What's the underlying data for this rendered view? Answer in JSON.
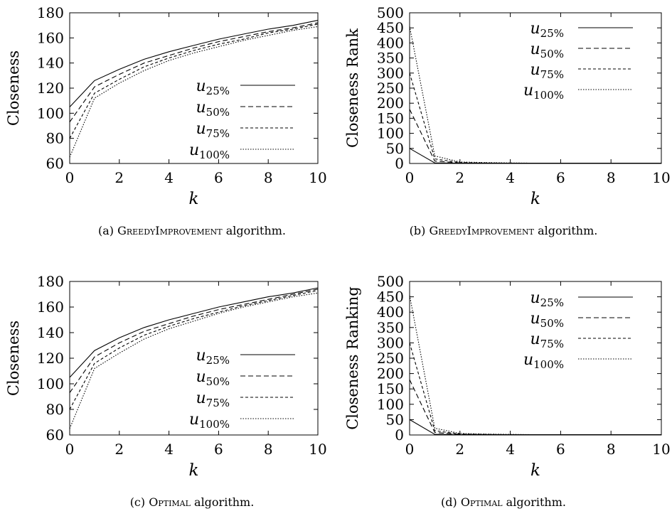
{
  "chart_data": [
    {
      "type": "line",
      "caption_prefix": "(a)",
      "caption_algo": "GreedyImprovement",
      "caption_suffix": "algorithm.",
      "ylabel": "Closeness",
      "xlabel": "k",
      "xlim": [
        0,
        10
      ],
      "ylim": [
        60,
        180
      ],
      "xticks": [
        0,
        2,
        4,
        6,
        8,
        10
      ],
      "yticks": [
        60,
        80,
        100,
        120,
        140,
        160,
        180
      ],
      "x": [
        0,
        1,
        2,
        3,
        4,
        5,
        6,
        7,
        8,
        9,
        10
      ],
      "legend_position": "lower-right",
      "series": [
        {
          "name": "u",
          "sub": "25%",
          "dash": "solid",
          "values": [
            105,
            126,
            135,
            143,
            149,
            154,
            159,
            163,
            167,
            170,
            174
          ]
        },
        {
          "name": "u",
          "sub": "50%",
          "dash": "dashed",
          "values": [
            93,
            121,
            131,
            140,
            146,
            152,
            157,
            161,
            165,
            168,
            172
          ]
        },
        {
          "name": "u",
          "sub": "75%",
          "dash": "short-dashed",
          "values": [
            80,
            116,
            127,
            137,
            144,
            150,
            155,
            159,
            164,
            167,
            171
          ]
        },
        {
          "name": "u",
          "sub": "100%",
          "dash": "dotted",
          "values": [
            65,
            112,
            124,
            134,
            142,
            148,
            153,
            158,
            162,
            166,
            169
          ]
        }
      ]
    },
    {
      "type": "line",
      "caption_prefix": "(b)",
      "caption_algo": "GreedyImprovement",
      "caption_suffix": "algorithm.",
      "ylabel": "Closeness Rank",
      "xlabel": "k",
      "xlim": [
        0,
        10
      ],
      "ylim": [
        0,
        500
      ],
      "xticks": [
        0,
        2,
        4,
        6,
        8,
        10
      ],
      "yticks": [
        0,
        50,
        100,
        150,
        200,
        250,
        300,
        350,
        400,
        450,
        500
      ],
      "x": [
        0,
        1,
        2,
        3,
        4,
        5,
        6,
        7,
        8,
        9,
        10
      ],
      "legend_position": "top-right",
      "series": [
        {
          "name": "u",
          "sub": "25%",
          "dash": "solid",
          "values": [
            50,
            2,
            1,
            1,
            1,
            1,
            1,
            1,
            1,
            1,
            1
          ]
        },
        {
          "name": "u",
          "sub": "50%",
          "dash": "dashed",
          "values": [
            180,
            8,
            2,
            1,
            1,
            1,
            1,
            1,
            1,
            1,
            1
          ]
        },
        {
          "name": "u",
          "sub": "75%",
          "dash": "short-dashed",
          "values": [
            300,
            15,
            3,
            2,
            1,
            1,
            1,
            1,
            1,
            1,
            1
          ]
        },
        {
          "name": "u",
          "sub": "100%",
          "dash": "dotted",
          "values": [
            455,
            25,
            5,
            3,
            2,
            1,
            1,
            1,
            1,
            1,
            1
          ]
        }
      ]
    },
    {
      "type": "line",
      "caption_prefix": "(c)",
      "caption_algo": "Optimal",
      "caption_suffix": "algorithm.",
      "ylabel": "Closeness",
      "xlabel": "k",
      "xlim": [
        0,
        10
      ],
      "ylim": [
        60,
        180
      ],
      "xticks": [
        0,
        2,
        4,
        6,
        8,
        10
      ],
      "yticks": [
        60,
        80,
        100,
        120,
        140,
        160,
        180
      ],
      "x": [
        0,
        1,
        2,
        3,
        4,
        5,
        6,
        7,
        8,
        9,
        10
      ],
      "legend_position": "lower-right",
      "series": [
        {
          "name": "u",
          "sub": "25%",
          "dash": "solid",
          "values": [
            105,
            126,
            136,
            144,
            150,
            155,
            160,
            164,
            168,
            171,
            175
          ]
        },
        {
          "name": "u",
          "sub": "50%",
          "dash": "dashed",
          "values": [
            93,
            121,
            132,
            141,
            147,
            153,
            158,
            162,
            166,
            170,
            174
          ]
        },
        {
          "name": "u",
          "sub": "75%",
          "dash": "short-dashed",
          "values": [
            80,
            116,
            128,
            138,
            145,
            151,
            156,
            161,
            165,
            169,
            173
          ]
        },
        {
          "name": "u",
          "sub": "100%",
          "dash": "dotted",
          "values": [
            65,
            112,
            124,
            135,
            143,
            149,
            155,
            160,
            164,
            168,
            171
          ]
        }
      ]
    },
    {
      "type": "line",
      "caption_prefix": "(d)",
      "caption_algo": "Optimal",
      "caption_suffix": "algorithm.",
      "ylabel": "Closeness Ranking",
      "xlabel": "k",
      "xlim": [
        0,
        10
      ],
      "ylim": [
        0,
        500
      ],
      "xticks": [
        0,
        2,
        4,
        6,
        8,
        10
      ],
      "yticks": [
        0,
        50,
        100,
        150,
        200,
        250,
        300,
        350,
        400,
        450,
        500
      ],
      "x": [
        0,
        1,
        2,
        3,
        4,
        5,
        6,
        7,
        8,
        9,
        10
      ],
      "legend_position": "top-right",
      "series": [
        {
          "name": "u",
          "sub": "25%",
          "dash": "solid",
          "values": [
            50,
            2,
            1,
            1,
            1,
            1,
            1,
            1,
            1,
            1,
            1
          ]
        },
        {
          "name": "u",
          "sub": "50%",
          "dash": "dashed",
          "values": [
            180,
            8,
            2,
            1,
            1,
            1,
            1,
            1,
            1,
            1,
            1
          ]
        },
        {
          "name": "u",
          "sub": "75%",
          "dash": "short-dashed",
          "values": [
            300,
            14,
            3,
            2,
            1,
            1,
            1,
            1,
            1,
            1,
            1
          ]
        },
        {
          "name": "u",
          "sub": "100%",
          "dash": "dotted",
          "values": [
            455,
            22,
            5,
            3,
            2,
            1,
            1,
            1,
            1,
            1,
            1
          ]
        }
      ]
    }
  ]
}
